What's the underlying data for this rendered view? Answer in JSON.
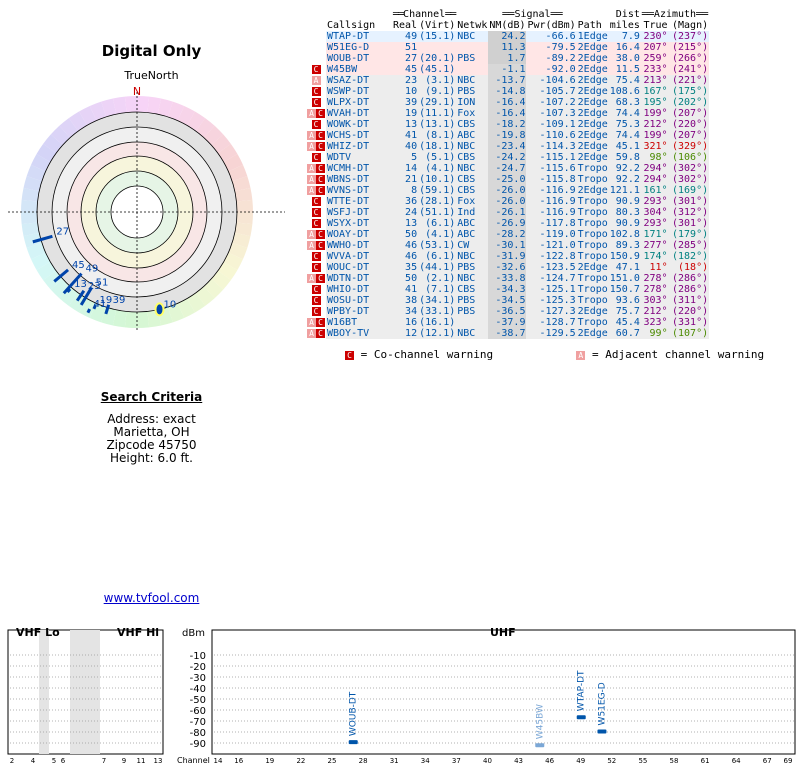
{
  "title": "Digital Only",
  "compass_label": "TrueNorth",
  "north_label": "N",
  "polar_labels": [
    {
      "text": "27",
      "angle": 254,
      "r": 0.88
    },
    {
      "text": "45",
      "angle": 230,
      "r": 0.9
    },
    {
      "text": "49",
      "angle": 222,
      "r": 0.83
    },
    {
      "text": "51",
      "angle": 211,
      "r": 0.88
    },
    {
      "text": "23",
      "angle": 214,
      "r": 0.95
    },
    {
      "text": "13",
      "angle": 221,
      "r": 1.02
    },
    {
      "text": "19",
      "angle": 204,
      "r": 1.02
    },
    {
      "text": "39",
      "angle": 197,
      "r": 0.97
    },
    {
      "text": "41",
      "angle": 206,
      "r": 1.08
    },
    {
      "text": "10",
      "angle": 167,
      "r": 1.0
    }
  ],
  "criteria": {
    "title": "Search Criteria",
    "address": "Address: exact",
    "city": "Marietta, OH",
    "zip": "Zipcode 45750",
    "height": "Height: 6.0 ft."
  },
  "link": "www.tvfool.com",
  "table": {
    "group_headers": {
      "channel": "Channel",
      "signal": "Signal",
      "azimuth": "Azimuth"
    },
    "headers": {
      "callsign": "Callsign",
      "real": "Real",
      "virt": "(Virt)",
      "netwk": "Netwk",
      "nm": "NM(dB)",
      "pwr": "Pwr(dBm)",
      "path": "Path",
      "dist_top": "Dist",
      "dist": "miles",
      "true": "True",
      "magn": "(Magn)"
    },
    "rows": [
      {
        "warn": "",
        "callsign": "WTAP-DT",
        "real": "49",
        "virt": "(15.1)",
        "netwk": "NBC",
        "nm": "24.2",
        "pwr": "-66.6",
        "path": "1Edge",
        "dist": "7.9",
        "true": "230°",
        "magn": "(237°)",
        "bg": "#e6f2ff",
        "az": "#800080"
      },
      {
        "warn": "",
        "callsign": "W51EG-D",
        "real": "51",
        "virt": "",
        "netwk": "",
        "nm": "11.3",
        "pwr": "-79.5",
        "path": "2Edge",
        "dist": "16.4",
        "true": "207°",
        "magn": "(215°)",
        "bg": "#ffe6e6",
        "az": "#800080"
      },
      {
        "warn": "",
        "callsign": "WOUB-DT",
        "real": "27",
        "virt": "(20.1)",
        "netwk": "PBS",
        "nm": "1.7",
        "pwr": "-89.2",
        "path": "2Edge",
        "dist": "38.0",
        "true": "259°",
        "magn": "(266°)",
        "bg": "#ffe6e6",
        "az": "#800080"
      },
      {
        "warn": "C",
        "callsign": "W45BW",
        "real": "45",
        "virt": "(45.1)",
        "netwk": "",
        "nm": "-1.1",
        "pwr": "-92.0",
        "path": "2Edge",
        "dist": "11.5",
        "true": "233°",
        "magn": "(241°)",
        "bg": "#ffe6e6",
        "az": "#800080"
      },
      {
        "warn": "A",
        "callsign": "WSAZ-DT",
        "real": "23",
        "virt": "(3.1)",
        "netwk": "NBC",
        "nm": "-13.7",
        "pwr": "-104.6",
        "path": "2Edge",
        "dist": "75.4",
        "true": "213°",
        "magn": "(221°)",
        "bg": "#ededed",
        "az": "#800080"
      },
      {
        "warn": "C",
        "callsign": "WSWP-DT",
        "real": "10",
        "virt": "(9.1)",
        "netwk": "PBS",
        "nm": "-14.8",
        "pwr": "-105.7",
        "path": "2Edge",
        "dist": "108.6",
        "true": "167°",
        "magn": "(175°)",
        "bg": "#ededed",
        "az": "#008080"
      },
      {
        "warn": "C",
        "callsign": "WLPX-DT",
        "real": "39",
        "virt": "(29.1)",
        "netwk": "ION",
        "nm": "-16.4",
        "pwr": "-107.2",
        "path": "2Edge",
        "dist": "68.3",
        "true": "195°",
        "magn": "(202°)",
        "bg": "#ededed",
        "az": "#008080"
      },
      {
        "warn": "AC",
        "callsign": "WVAH-DT",
        "real": "19",
        "virt": "(11.1)",
        "netwk": "Fox",
        "nm": "-16.4",
        "pwr": "-107.3",
        "path": "2Edge",
        "dist": "74.4",
        "true": "199°",
        "magn": "(207°)",
        "bg": "#ededed",
        "az": "#800080"
      },
      {
        "warn": "C",
        "callsign": "WOWK-DT",
        "real": "13",
        "virt": "(13.1)",
        "netwk": "CBS",
        "nm": "-18.2",
        "pwr": "-109.1",
        "path": "2Edge",
        "dist": "75.3",
        "true": "212°",
        "magn": "(220°)",
        "bg": "#ededed",
        "az": "#800080"
      },
      {
        "warn": "AC",
        "callsign": "WCHS-DT",
        "real": "41",
        "virt": "(8.1)",
        "netwk": "ABC",
        "nm": "-19.8",
        "pwr": "-110.6",
        "path": "2Edge",
        "dist": "74.4",
        "true": "199°",
        "magn": "(207°)",
        "bg": "#ededed",
        "az": "#800080"
      },
      {
        "warn": "AC",
        "callsign": "WHIZ-DT",
        "real": "40",
        "virt": "(18.1)",
        "netwk": "NBC",
        "nm": "-23.4",
        "pwr": "-114.3",
        "path": "2Edge",
        "dist": "45.1",
        "true": "321°",
        "magn": "(329°)",
        "bg": "#ededed",
        "az": "#cc0000"
      },
      {
        "warn": "C",
        "callsign": "WDTV",
        "real": "5",
        "virt": "(5.1)",
        "netwk": "CBS",
        "nm": "-24.2",
        "pwr": "-115.1",
        "path": "2Edge",
        "dist": "59.8",
        "true": "98°",
        "magn": "(106°)",
        "bg": "#ededed",
        "az": "#4a8a00"
      },
      {
        "warn": "AC",
        "callsign": "WCMH-DT",
        "real": "14",
        "virt": "(4.1)",
        "netwk": "NBC",
        "nm": "-24.7",
        "pwr": "-115.6",
        "path": "Tropo",
        "dist": "92.2",
        "true": "294°",
        "magn": "(302°)",
        "bg": "#ededed",
        "az": "#800080"
      },
      {
        "warn": "AC",
        "callsign": "WBNS-DT",
        "real": "21",
        "virt": "(10.1)",
        "netwk": "CBS",
        "nm": "-25.0",
        "pwr": "-115.8",
        "path": "Tropo",
        "dist": "92.2",
        "true": "294°",
        "magn": "(302°)",
        "bg": "#ededed",
        "az": "#800080"
      },
      {
        "warn": "AC",
        "callsign": "WVNS-DT",
        "real": "8",
        "virt": "(59.1)",
        "netwk": "CBS",
        "nm": "-26.0",
        "pwr": "-116.9",
        "path": "2Edge",
        "dist": "121.1",
        "true": "161°",
        "magn": "(169°)",
        "bg": "#ededed",
        "az": "#008080"
      },
      {
        "warn": "C",
        "callsign": "WTTE-DT",
        "real": "36",
        "virt": "(28.1)",
        "netwk": "Fox",
        "nm": "-26.0",
        "pwr": "-116.9",
        "path": "Tropo",
        "dist": "90.9",
        "true": "293°",
        "magn": "(301°)",
        "bg": "#ededed",
        "az": "#800080"
      },
      {
        "warn": "C",
        "callsign": "WSFJ-DT",
        "real": "24",
        "virt": "(51.1)",
        "netwk": "Ind",
        "nm": "-26.1",
        "pwr": "-116.9",
        "path": "Tropo",
        "dist": "80.3",
        "true": "304°",
        "magn": "(312°)",
        "bg": "#ededed",
        "az": "#800080"
      },
      {
        "warn": "C",
        "callsign": "WSYX-DT",
        "real": "13",
        "virt": "(6.1)",
        "netwk": "ABC",
        "nm": "-26.9",
        "pwr": "-117.8",
        "path": "Tropo",
        "dist": "90.9",
        "true": "293°",
        "magn": "(301°)",
        "bg": "#ededed",
        "az": "#800080"
      },
      {
        "warn": "AC",
        "callsign": "WOAY-DT",
        "real": "50",
        "virt": "(4.1)",
        "netwk": "ABC",
        "nm": "-28.2",
        "pwr": "-119.0",
        "path": "Tropo",
        "dist": "102.8",
        "true": "171°",
        "magn": "(179°)",
        "bg": "#ededed",
        "az": "#008080"
      },
      {
        "warn": "AC",
        "callsign": "WWHO-DT",
        "real": "46",
        "virt": "(53.1)",
        "netwk": "CW",
        "nm": "-30.1",
        "pwr": "-121.0",
        "path": "Tropo",
        "dist": "89.3",
        "true": "277°",
        "magn": "(285°)",
        "bg": "#ededed",
        "az": "#800080"
      },
      {
        "warn": "C",
        "callsign": "WVVA-DT",
        "real": "46",
        "virt": "(6.1)",
        "netwk": "NBC",
        "nm": "-31.9",
        "pwr": "-122.8",
        "path": "Tropo",
        "dist": "150.9",
        "true": "174°",
        "magn": "(182°)",
        "bg": "#ededed",
        "az": "#008080"
      },
      {
        "warn": "C",
        "callsign": "WOUC-DT",
        "real": "35",
        "virt": "(44.1)",
        "netwk": "PBS",
        "nm": "-32.6",
        "pwr": "-123.5",
        "path": "2Edge",
        "dist": "47.1",
        "true": "11°",
        "magn": "(18°)",
        "bg": "#ededed",
        "az": "#cc0000"
      },
      {
        "warn": "AC",
        "callsign": "WDTN-DT",
        "real": "50",
        "virt": "(2.1)",
        "netwk": "NBC",
        "nm": "-33.8",
        "pwr": "-124.7",
        "path": "Tropo",
        "dist": "151.0",
        "true": "278°",
        "magn": "(286°)",
        "bg": "#ededed",
        "az": "#800080"
      },
      {
        "warn": "C",
        "callsign": "WHIO-DT",
        "real": "41",
        "virt": "(7.1)",
        "netwk": "CBS",
        "nm": "-34.3",
        "pwr": "-125.1",
        "path": "Tropo",
        "dist": "150.7",
        "true": "278°",
        "magn": "(286°)",
        "bg": "#ededed",
        "az": "#800080"
      },
      {
        "warn": "C",
        "callsign": "WOSU-DT",
        "real": "38",
        "virt": "(34.1)",
        "netwk": "PBS",
        "nm": "-34.5",
        "pwr": "-125.3",
        "path": "Tropo",
        "dist": "93.6",
        "true": "303°",
        "magn": "(311°)",
        "bg": "#ededed",
        "az": "#800080"
      },
      {
        "warn": "C",
        "callsign": "WPBY-DT",
        "real": "34",
        "virt": "(33.1)",
        "netwk": "PBS",
        "nm": "-36.5",
        "pwr": "-127.3",
        "path": "2Edge",
        "dist": "75.7",
        "true": "212°",
        "magn": "(220°)",
        "bg": "#ededed",
        "az": "#800080"
      },
      {
        "warn": "AC",
        "callsign": "W16BT",
        "real": "16",
        "virt": "(16.1)",
        "netwk": "",
        "nm": "-37.9",
        "pwr": "-128.7",
        "path": "Tropo",
        "dist": "45.4",
        "true": "323°",
        "magn": "(331°)",
        "bg": "#ededed",
        "az": "#800080"
      },
      {
        "warn": "AC",
        "callsign": "WBOY-TV",
        "real": "12",
        "virt": "(12.1)",
        "netwk": "NBC",
        "nm": "-38.7",
        "pwr": "-129.5",
        "path": "2Edge",
        "dist": "60.7",
        "true": "99°",
        "magn": "(107°)",
        "bg": "#ededed",
        "az": "#4a8a00"
      }
    ],
    "legend_co": "= Co-channel warning",
    "legend_adj": "= Adjacent channel warning",
    "legend_co_glyph": "C",
    "legend_adj_glyph": "A"
  },
  "spectrum": {
    "vhf_lo_label": "VHF Lo",
    "vhf_hi_label": "VHF Hi",
    "uhf_label": "UHF",
    "unit_label": "dBm",
    "channel_label": "Channel",
    "y_ticks": [
      "-10",
      "-20",
      "-30",
      "-40",
      "-50",
      "-60",
      "-70",
      "-80",
      "-90"
    ],
    "vhf_lo_ticks": [
      "2",
      "4",
      "5",
      "6"
    ],
    "vhf_hi_ticks": [
      "7",
      "9",
      "11",
      "13"
    ],
    "uhf_ticks": [
      "14",
      "16",
      "19",
      "22",
      "25",
      "28",
      "31",
      "34",
      "37",
      "40",
      "43",
      "46",
      "49",
      "52",
      "55",
      "58",
      "61",
      "64",
      "67",
      "69"
    ],
    "stations": [
      {
        "name": "WOUB-DT",
        "ch": 27,
        "dbm": -89.2,
        "color": "#0055aa"
      },
      {
        "name": "W45BW",
        "ch": 45,
        "dbm": -92.0,
        "color": "#7ba7d6"
      },
      {
        "name": "WTAP-DT",
        "ch": 49,
        "dbm": -66.6,
        "color": "#0055aa"
      },
      {
        "name": "W51EG-D",
        "ch": 51,
        "dbm": -79.5,
        "color": "#0055aa"
      }
    ]
  }
}
